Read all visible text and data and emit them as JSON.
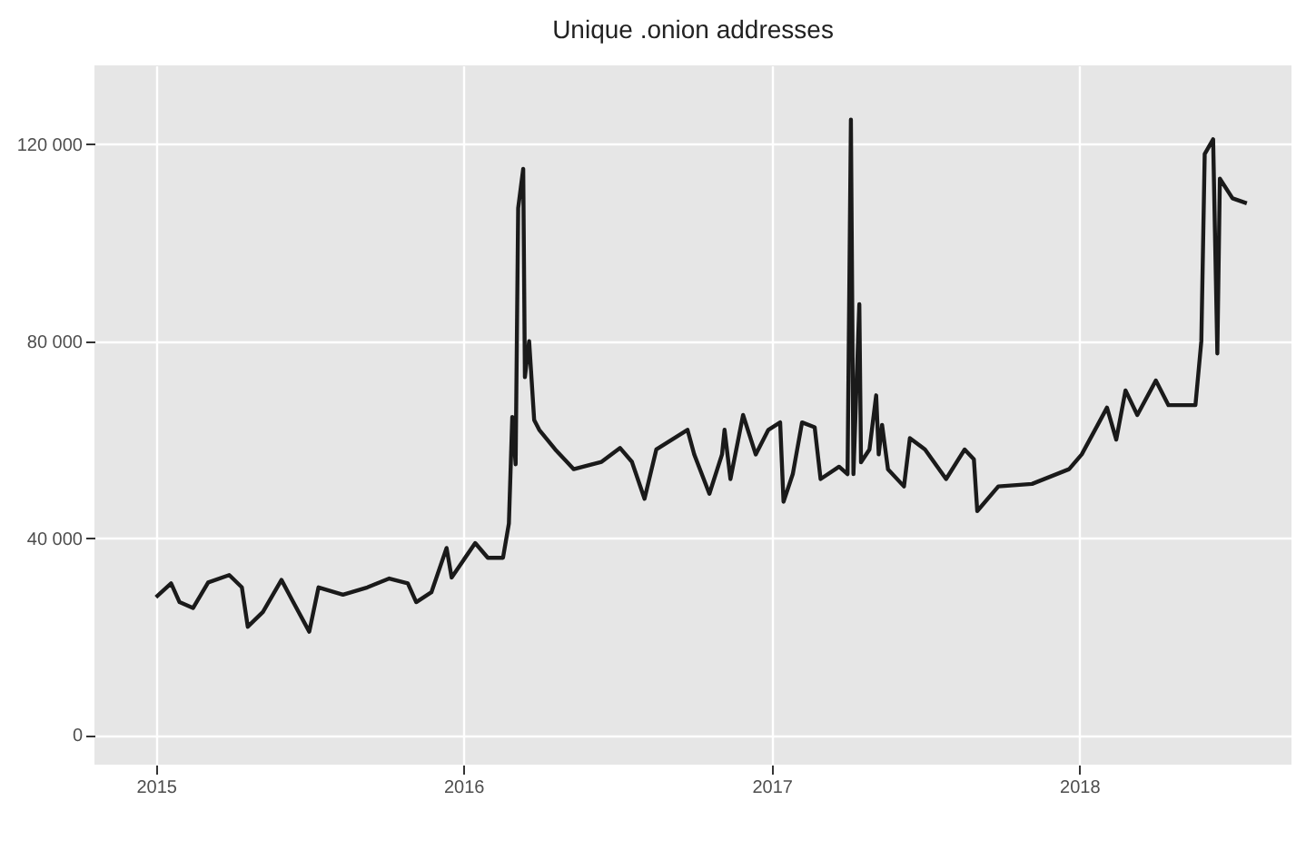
{
  "chart_data": {
    "type": "line",
    "title": "Unique .onion addresses",
    "x": [
      "2015-01-01",
      "2015-01-19",
      "2015-01-29",
      "2015-02-14",
      "2015-03-04",
      "2015-03-29",
      "2015-04-13",
      "2015-04-20",
      "2015-05-08",
      "2015-05-30",
      "2015-06-13",
      "2015-07-02",
      "2015-07-13",
      "2015-08-11",
      "2015-09-09",
      "2015-10-05",
      "2015-10-27",
      "2015-11-06",
      "2015-11-24",
      "2015-12-12",
      "2015-12-18",
      "2016-01-15",
      "2016-01-30",
      "2016-02-17",
      "2016-02-24",
      "2016-02-28",
      "2016-03-03",
      "2016-03-06",
      "2016-03-12",
      "2016-03-14",
      "2016-03-19",
      "2016-03-25",
      "2016-03-31",
      "2016-04-19",
      "2016-05-11",
      "2016-06-13",
      "2016-07-05",
      "2016-07-19",
      "2016-08-03",
      "2016-08-17",
      "2016-09-23",
      "2016-10-01",
      "2016-10-19",
      "2016-11-03",
      "2016-11-06",
      "2016-11-13",
      "2016-11-28",
      "2016-12-13",
      "2016-12-28",
      "2017-01-11",
      "2017-01-15",
      "2017-01-26",
      "2017-02-06",
      "2017-02-21",
      "2017-02-28",
      "2017-03-22",
      "2017-04-01",
      "2017-04-05",
      "2017-04-08",
      "2017-04-15",
      "2017-04-17",
      "2017-04-27",
      "2017-05-05",
      "2017-05-08",
      "2017-05-12",
      "2017-05-19",
      "2017-06-07",
      "2017-06-14",
      "2017-07-02",
      "2017-07-27",
      "2017-08-18",
      "2017-08-29",
      "2017-09-02",
      "2017-09-27",
      "2017-11-06",
      "2017-12-20",
      "2018-01-04",
      "2018-01-23",
      "2018-02-03",
      "2018-02-14",
      "2018-02-25",
      "2018-03-11",
      "2018-04-02",
      "2018-04-17",
      "2018-05-19",
      "2018-05-26",
      "2018-05-30",
      "2018-06-09",
      "2018-06-14",
      "2018-06-17",
      "2018-07-02",
      "2018-07-19"
    ],
    "series": [
      {
        "color": "#1a1a1a",
        "values": [
          28000,
          30800,
          27000,
          25800,
          31000,
          32500,
          30000,
          22000,
          25000,
          31500,
          27000,
          21000,
          30000,
          28500,
          30000,
          31800,
          30800,
          27000,
          29000,
          38000,
          32000,
          39000,
          36000,
          36000,
          43000,
          64600,
          55000,
          107000,
          115000,
          72700,
          80000,
          64000,
          62000,
          58000,
          54000,
          55500,
          58300,
          55500,
          48000,
          58000,
          62000,
          57000,
          49000,
          57000,
          62000,
          52000,
          65000,
          57000,
          62000,
          63500,
          47400,
          53000,
          63500,
          62500,
          52000,
          54500,
          53000,
          125000,
          53000,
          87500,
          55400,
          58000,
          69000,
          57000,
          63000,
          54000,
          50500,
          60300,
          58000,
          52000,
          58000,
          56000,
          45500,
          50500,
          51000,
          54000,
          57000,
          63000,
          66500,
          60000,
          70000,
          65000,
          72000,
          67000,
          67000,
          80000,
          118000,
          121000,
          77500,
          113000,
          109000,
          108000
        ]
      }
    ],
    "xlim": [
      "2014-10-20",
      "2018-09-10"
    ],
    "xticks": [
      {
        "value": "2015",
        "label": "2015"
      },
      {
        "value": "2016",
        "label": "2016"
      },
      {
        "value": "2017",
        "label": "2017"
      },
      {
        "value": "2018",
        "label": "2018"
      }
    ],
    "ylim": [
      -6000,
      136000
    ],
    "yticks": [
      0,
      {
        "value": 40000,
        "label": "40 000"
      },
      {
        "value": 80000,
        "label": "80 000"
      },
      {
        "value": 120000,
        "label": "120 000"
      }
    ],
    "grid": true,
    "line_style": "solid"
  }
}
